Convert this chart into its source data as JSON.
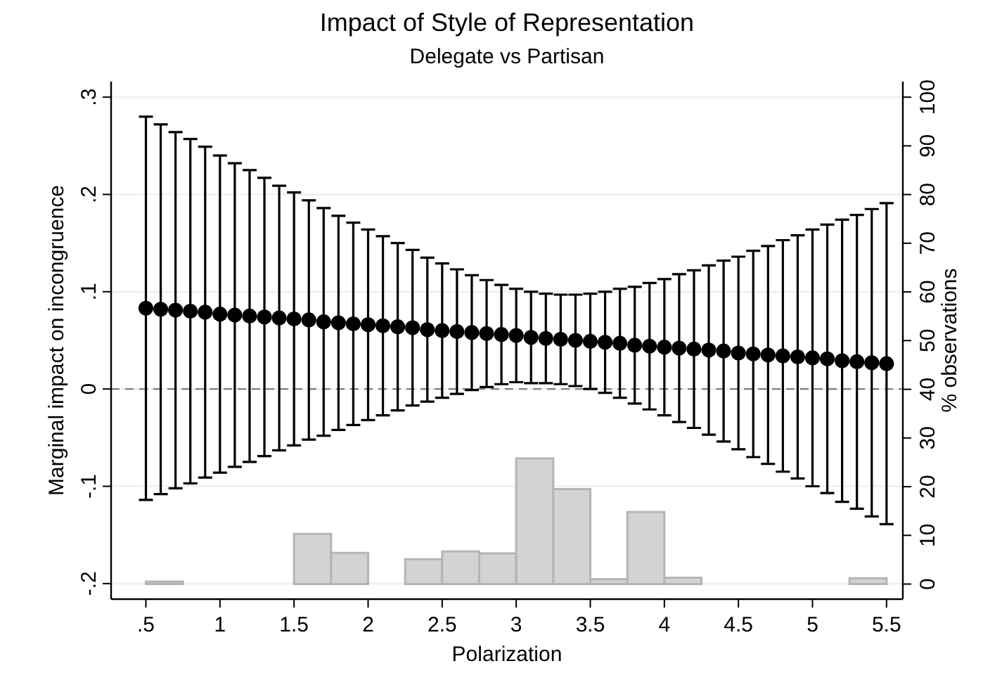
{
  "chart_data": {
    "type": "scatter",
    "title": "Impact of Style of Representation",
    "subtitle": "Delegate vs Partisan",
    "xlabel": "Polarization",
    "ylabel": "Marginal impact on incongruence",
    "y2label": "% observations",
    "xlim": [
      0.265,
      5.61
    ],
    "xticks": [
      {
        "value": 0.5,
        "label": ".5"
      },
      1,
      1.5,
      2,
      2.5,
      3,
      3.5,
      4,
      4.5,
      5,
      5.5
    ],
    "ylim": [
      -0.216,
      0.316
    ],
    "yticks": [
      {
        "value": -0.2,
        "label": "-.2"
      },
      {
        "value": -0.1,
        "label": "-.1"
      },
      0,
      {
        "value": 0.1,
        "label": ".1"
      },
      {
        "value": 0.2,
        "label": ".2"
      },
      {
        "value": 0.3,
        "label": ".3"
      }
    ],
    "y2lim": [
      -3.1,
      103.2
    ],
    "y2ticks": [
      0,
      10,
      20,
      30,
      40,
      50,
      60,
      70,
      80,
      90,
      100
    ],
    "grid": "y",
    "marker": "circle",
    "ref_lines": [
      {
        "axis": "y",
        "value": 0,
        "color": "#808080",
        "line_style": "dashed"
      }
    ],
    "series": [
      {
        "type": "histogram",
        "axis": "y2",
        "color": "#d3d3d3",
        "bins": [
          0.5,
          0.75,
          1,
          1.25,
          1.5,
          1.75,
          2,
          2.25,
          2.5,
          2.75,
          3,
          3.25,
          3.5,
          3.75,
          4,
          4.25,
          4.5,
          4.75,
          5,
          5.25,
          5.5
        ],
        "values": [
          0.5,
          0,
          0,
          0,
          10.3,
          6.4,
          0,
          5.1,
          6.7,
          6.3,
          25.8,
          19.5,
          1,
          14.8,
          1.3,
          0,
          0,
          0,
          0,
          1.2
        ]
      },
      {
        "color": "#000000",
        "x": [
          0.5,
          0.6,
          0.7,
          0.8,
          0.9,
          1,
          1.1,
          1.2,
          1.3,
          1.4,
          1.5,
          1.6,
          1.7,
          1.8,
          1.9,
          2,
          2.1,
          2.2,
          2.3,
          2.4,
          2.5,
          2.6,
          2.7,
          2.8,
          2.9,
          3,
          3.1,
          3.2,
          3.3,
          3.4,
          3.5,
          3.6,
          3.7,
          3.8,
          3.9,
          4,
          4.1,
          4.2,
          4.3,
          4.4,
          4.5,
          4.6,
          4.7,
          4.8,
          4.9,
          5,
          5.1,
          5.2,
          5.3,
          5.4,
          5.5
        ],
        "values": [
          0.083,
          0.082,
          0.081,
          0.08,
          0.079,
          0.077,
          0.076,
          0.075,
          0.074,
          0.073,
          0.072,
          0.071,
          0.069,
          0.068,
          0.067,
          0.066,
          0.065,
          0.064,
          0.063,
          0.061,
          0.06,
          0.059,
          0.058,
          0.057,
          0.056,
          0.055,
          0.053,
          0.052,
          0.051,
          0.05,
          0.049,
          0.048,
          0.047,
          0.045,
          0.044,
          0.043,
          0.042,
          0.041,
          0.04,
          0.039,
          0.037,
          0.036,
          0.035,
          0.034,
          0.033,
          0.032,
          0.031,
          0.029,
          0.028,
          0.027,
          0.026
        ],
        "errors": [
          0.197,
          0.19,
          0.183,
          0.177,
          0.17,
          0.163,
          0.156,
          0.15,
          0.143,
          0.136,
          0.13,
          0.123,
          0.117,
          0.11,
          0.104,
          0.098,
          0.092,
          0.086,
          0.08,
          0.074,
          0.069,
          0.064,
          0.059,
          0.055,
          0.051,
          0.048,
          0.047,
          0.046,
          0.046,
          0.047,
          0.049,
          0.052,
          0.056,
          0.06,
          0.065,
          0.07,
          0.076,
          0.081,
          0.087,
          0.093,
          0.099,
          0.106,
          0.112,
          0.119,
          0.125,
          0.132,
          0.138,
          0.145,
          0.151,
          0.158,
          0.165
        ]
      }
    ]
  }
}
